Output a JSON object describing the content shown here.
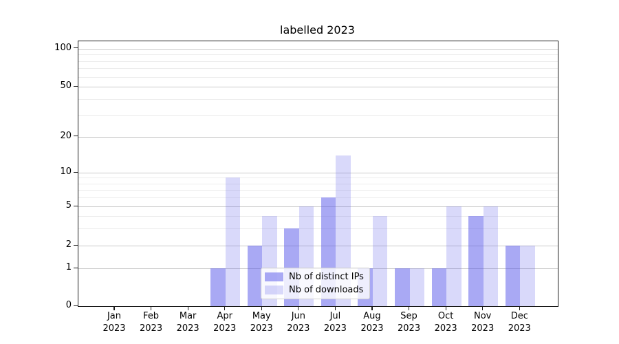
{
  "title": "labelled 2023",
  "chart_data": {
    "type": "bar",
    "title": "labelled 2023",
    "categories": [
      "Jan",
      "Feb",
      "Mar",
      "Apr",
      "May",
      "Jun",
      "Jul",
      "Aug",
      "Sep",
      "Oct",
      "Nov",
      "Dec"
    ],
    "category_year": "2023",
    "series": [
      {
        "name": "Nb of distinct IPs",
        "color": "rgba(84,84,233,0.5)",
        "values": [
          0,
          0,
          0,
          1,
          2,
          3,
          6,
          1,
          1,
          1,
          4,
          2
        ]
      },
      {
        "name": "Nb of downloads",
        "color": "rgba(84,84,233,0.22)",
        "values": [
          0,
          0,
          0,
          9,
          4,
          5,
          14,
          4,
          1,
          5,
          5,
          2
        ]
      }
    ],
    "yaxis": {
      "scale": "log-like (0,1,2,5,10,20,50,100)",
      "major_ticks": [
        0,
        1,
        2,
        5,
        10,
        20,
        50,
        100
      ],
      "minor_gridlines": [
        3,
        4,
        6,
        7,
        8,
        9,
        30,
        40,
        60,
        70,
        80,
        90
      ],
      "ylim": [
        0,
        113
      ]
    },
    "xlabel": "",
    "ylabel": "",
    "grid": true,
    "legend": {
      "position": "lower center",
      "labels": [
        "Nb of distinct IPs",
        "Nb of downloads"
      ]
    }
  },
  "colors": {
    "bar_distinct_ips": "rgba(84,84,233,0.5)",
    "bar_downloads": "rgba(84,84,233,0.22)",
    "gridline_major": "#c9c9c9",
    "gridline_minor": "#ececec",
    "axis": "#1a1a1a"
  }
}
